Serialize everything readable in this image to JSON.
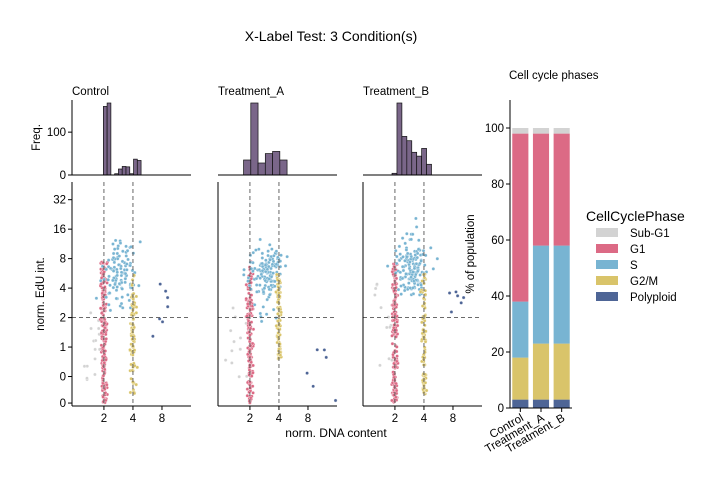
{
  "figure": {
    "title": "X-Label Test: 3 Condition(s)",
    "shared_xlabel": "norm. DNA content"
  },
  "colors": {
    "hist_fill": "#7a6689",
    "hist_edge": "#111111",
    "Sub-G1": "#d3d3d3",
    "G1": "#dc6a85",
    "S": "#78b4d2",
    "G2/M": "#d9c46a",
    "Polyploid": "#4e6596",
    "guide_line": "#555555"
  },
  "chart_data": [
    {
      "type": "histogram",
      "panel": "hist",
      "condition": "Control",
      "title": "Control",
      "ylabel": "Freq.",
      "yticks": [
        0,
        100
      ],
      "ylim": [
        0,
        175
      ],
      "log2_x_range": [
        -0.1,
        4.0
      ],
      "bins": [
        {
          "x0": 0.85,
          "x1": 0.98,
          "count": 0
        },
        {
          "x0": 0.98,
          "x1": 1.11,
          "count": 160
        },
        {
          "x0": 1.11,
          "x1": 1.24,
          "count": 168
        },
        {
          "x0": 1.24,
          "x1": 1.37,
          "count": 0
        },
        {
          "x0": 1.37,
          "x1": 1.5,
          "count": 3
        },
        {
          "x0": 1.5,
          "x1": 1.63,
          "count": 14
        },
        {
          "x0": 1.63,
          "x1": 1.76,
          "count": 20
        },
        {
          "x0": 1.76,
          "x1": 1.89,
          "count": 19
        },
        {
          "x0": 1.89,
          "x1": 2.02,
          "count": 3
        },
        {
          "x0": 2.02,
          "x1": 2.15,
          "count": 37
        },
        {
          "x0": 2.15,
          "x1": 2.28,
          "count": 34
        }
      ]
    },
    {
      "type": "histogram",
      "panel": "hist",
      "condition": "Treatment_A",
      "title": "Treatment_A",
      "ylim": [
        0,
        175
      ],
      "log2_x_range": [
        -0.1,
        4.0
      ],
      "bins": [
        {
          "x0": 0.78,
          "x1": 1.03,
          "count": 35
        },
        {
          "x0": 1.03,
          "x1": 1.28,
          "count": 168
        },
        {
          "x0": 1.28,
          "x1": 1.53,
          "count": 28
        },
        {
          "x0": 1.53,
          "x1": 1.78,
          "count": 50
        },
        {
          "x0": 1.78,
          "x1": 2.03,
          "count": 55
        },
        {
          "x0": 2.03,
          "x1": 2.28,
          "count": 35
        }
      ]
    },
    {
      "type": "histogram",
      "panel": "hist",
      "condition": "Treatment_B",
      "title": "Treatment_B",
      "ylim": [
        0,
        175
      ],
      "log2_x_range": [
        -0.1,
        4.0
      ],
      "bins": [
        {
          "x0": 0.9,
          "x1": 1.07,
          "count": 4
        },
        {
          "x0": 1.07,
          "x1": 1.24,
          "count": 168
        },
        {
          "x0": 1.24,
          "x1": 1.41,
          "count": 90
        },
        {
          "x0": 1.41,
          "x1": 1.58,
          "count": 80
        },
        {
          "x0": 1.58,
          "x1": 1.75,
          "count": 53
        },
        {
          "x0": 1.75,
          "x1": 1.92,
          "count": 44
        },
        {
          "x0": 1.92,
          "x1": 2.09,
          "count": 62
        },
        {
          "x0": 2.09,
          "x1": 2.26,
          "count": 25
        }
      ]
    },
    {
      "type": "scatter",
      "panel": "scatter",
      "condition": "Control",
      "ylabel": "norm. EdU int.",
      "xticks": [
        "2",
        "4",
        "8"
      ],
      "yticks": [
        "0",
        "0",
        "1",
        "2",
        "4",
        "8",
        "16",
        "32"
      ],
      "log2_x_range": [
        -0.1,
        4.0
      ],
      "y_value_range": [
        -1,
        6.6
      ],
      "dna_gates_log2": [
        1.0,
        2.0
      ],
      "edu_threshold_log2": 2.0,
      "seed": 11,
      "clusters": [
        {
          "phase": "G1",
          "n": 200,
          "x_mean": 1.0,
          "x_sd": 0.05,
          "y_min": -0.9,
          "y_max": 3.9
        },
        {
          "phase": "S",
          "n": 110,
          "x_mean": 1.55,
          "x_sd": 0.3,
          "y_mean": 3.6,
          "y_sd": 0.55
        },
        {
          "phase": "G2/M",
          "n": 85,
          "x_mean": 2.0,
          "x_sd": 0.04,
          "y_min": -0.6,
          "y_max": 3.5
        },
        {
          "phase": "Sub-G1",
          "n": 15,
          "x_mean": 0.6,
          "x_sd": 0.2,
          "y_mean": 1.0,
          "y_sd": 0.9
        },
        {
          "phase": "Polyploid",
          "n": 7,
          "x_mean": 3.1,
          "x_sd": 0.2,
          "y_mean": 2.0,
          "y_sd": 0.8
        }
      ]
    },
    {
      "type": "scatter",
      "panel": "scatter",
      "condition": "Treatment_A",
      "xticks": [
        "2",
        "4",
        "8"
      ],
      "log2_x_range": [
        -0.1,
        4.0
      ],
      "y_value_range": [
        -1,
        6.6
      ],
      "dna_gates_log2": [
        1.0,
        2.0
      ],
      "edu_threshold_log2": 2.0,
      "seed": 23,
      "clusters": [
        {
          "phase": "G1",
          "n": 160,
          "x_mean": 1.0,
          "x_sd": 0.05,
          "y_min": -0.9,
          "y_max": 3.9
        },
        {
          "phase": "S",
          "n": 140,
          "x_mean": 1.55,
          "x_sd": 0.3,
          "y_mean": 3.5,
          "y_sd": 0.55
        },
        {
          "phase": "G2/M",
          "n": 95,
          "x_mean": 2.0,
          "x_sd": 0.04,
          "y_min": 0.6,
          "y_max": 3.5
        },
        {
          "phase": "Sub-G1",
          "n": 12,
          "x_mean": 0.6,
          "x_sd": 0.2,
          "y_mean": 1.2,
          "y_sd": 0.7
        },
        {
          "phase": "Polyploid",
          "n": 6,
          "x_mean": 3.2,
          "x_sd": 0.25,
          "y_mean": 0.6,
          "y_sd": 1.0
        }
      ]
    },
    {
      "type": "scatter",
      "panel": "scatter",
      "condition": "Treatment_B",
      "xticks": [
        "2",
        "4",
        "8"
      ],
      "log2_x_range": [
        -0.1,
        4.0
      ],
      "y_value_range": [
        -1,
        6.6
      ],
      "dna_gates_log2": [
        1.0,
        2.0
      ],
      "edu_threshold_log2": 2.0,
      "seed": 37,
      "clusters": [
        {
          "phase": "G1",
          "n": 165,
          "x_mean": 1.0,
          "x_sd": 0.05,
          "y_min": -0.9,
          "y_max": 3.9
        },
        {
          "phase": "S",
          "n": 150,
          "x_mean": 1.55,
          "x_sd": 0.3,
          "y_mean": 3.7,
          "y_sd": 0.55
        },
        {
          "phase": "G2/M",
          "n": 90,
          "x_mean": 2.0,
          "x_sd": 0.04,
          "y_min": -0.6,
          "y_max": 3.5
        },
        {
          "phase": "Sub-G1",
          "n": 12,
          "x_mean": 0.6,
          "x_sd": 0.2,
          "y_mean": 1.6,
          "y_sd": 0.8
        },
        {
          "phase": "Polyploid",
          "n": 6,
          "x_mean": 3.1,
          "x_sd": 0.2,
          "y_mean": 2.4,
          "y_sd": 0.5
        }
      ]
    },
    {
      "type": "bar",
      "stacked": true,
      "title": "Cell cycle phases",
      "ylabel": "% of population",
      "ylim": [
        0,
        110
      ],
      "yticks": [
        0,
        20,
        40,
        60,
        80,
        100
      ],
      "categories": [
        "Control",
        "Treatment_A",
        "Treatment_B"
      ],
      "legend_title": "CellCyclePhase",
      "legend_position": "right",
      "series": [
        {
          "name": "Polyploid",
          "values": [
            3,
            3,
            3
          ]
        },
        {
          "name": "G2/M",
          "values": [
            15,
            20,
            20
          ]
        },
        {
          "name": "S",
          "values": [
            20,
            35,
            35
          ]
        },
        {
          "name": "G1",
          "values": [
            60,
            40,
            40
          ]
        },
        {
          "name": "Sub-G1",
          "values": [
            2,
            2,
            2
          ]
        }
      ],
      "legend_order": [
        "Sub-G1",
        "G1",
        "S",
        "G2/M",
        "Polyploid"
      ]
    }
  ]
}
